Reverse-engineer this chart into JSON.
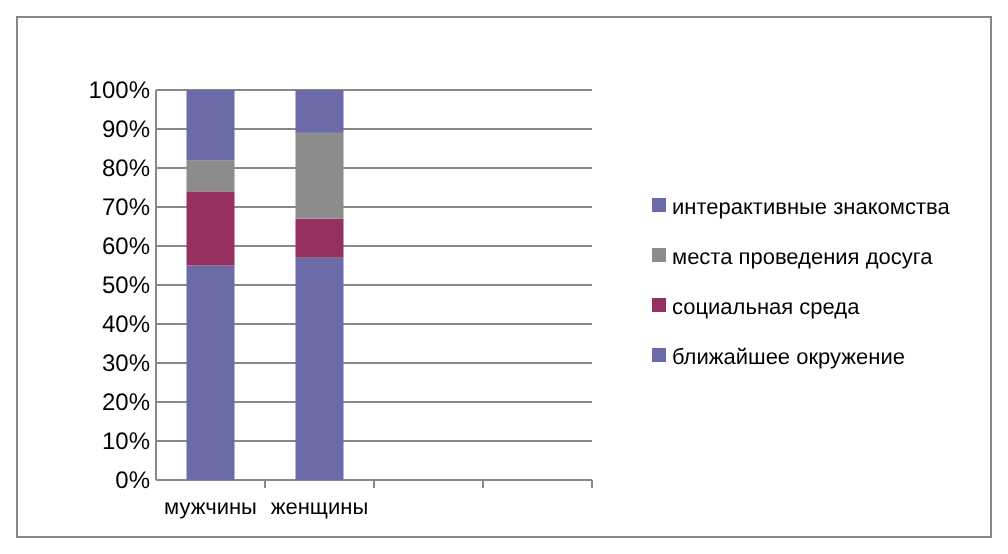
{
  "chart_data": {
    "type": "bar",
    "stacked": true,
    "categories": [
      "мужчины",
      "женщины",
      null,
      null
    ],
    "series": [
      {
        "name": "ближайшее окружение",
        "color": "#6b6ba8",
        "values": [
          55,
          57,
          null,
          null
        ]
      },
      {
        "name": "социальная среда",
        "color": "#953060",
        "values": [
          19,
          10,
          null,
          null
        ]
      },
      {
        "name": "места проведения досуга",
        "color": "#8c8c8c",
        "values": [
          8,
          22,
          null,
          null
        ]
      },
      {
        "name": "интерактивные знакомства",
        "color": "#6b6ba8",
        "values": [
          18,
          11,
          null,
          null
        ]
      }
    ],
    "ylim": [
      0,
      100
    ],
    "yticks": [
      {
        "value": 0,
        "label": "0%"
      },
      {
        "value": 10,
        "label": "10%"
      },
      {
        "value": 20,
        "label": "20%"
      },
      {
        "value": 30,
        "label": "30%"
      },
      {
        "value": 40,
        "label": "40%"
      },
      {
        "value": 50,
        "label": "50%"
      },
      {
        "value": 60,
        "label": "60%"
      },
      {
        "value": 70,
        "label": "70%"
      },
      {
        "value": 80,
        "label": "80%"
      },
      {
        "value": 90,
        "label": "90%"
      },
      {
        "value": 100,
        "label": "100%"
      }
    ],
    "grid": "y",
    "legend": "right"
  }
}
